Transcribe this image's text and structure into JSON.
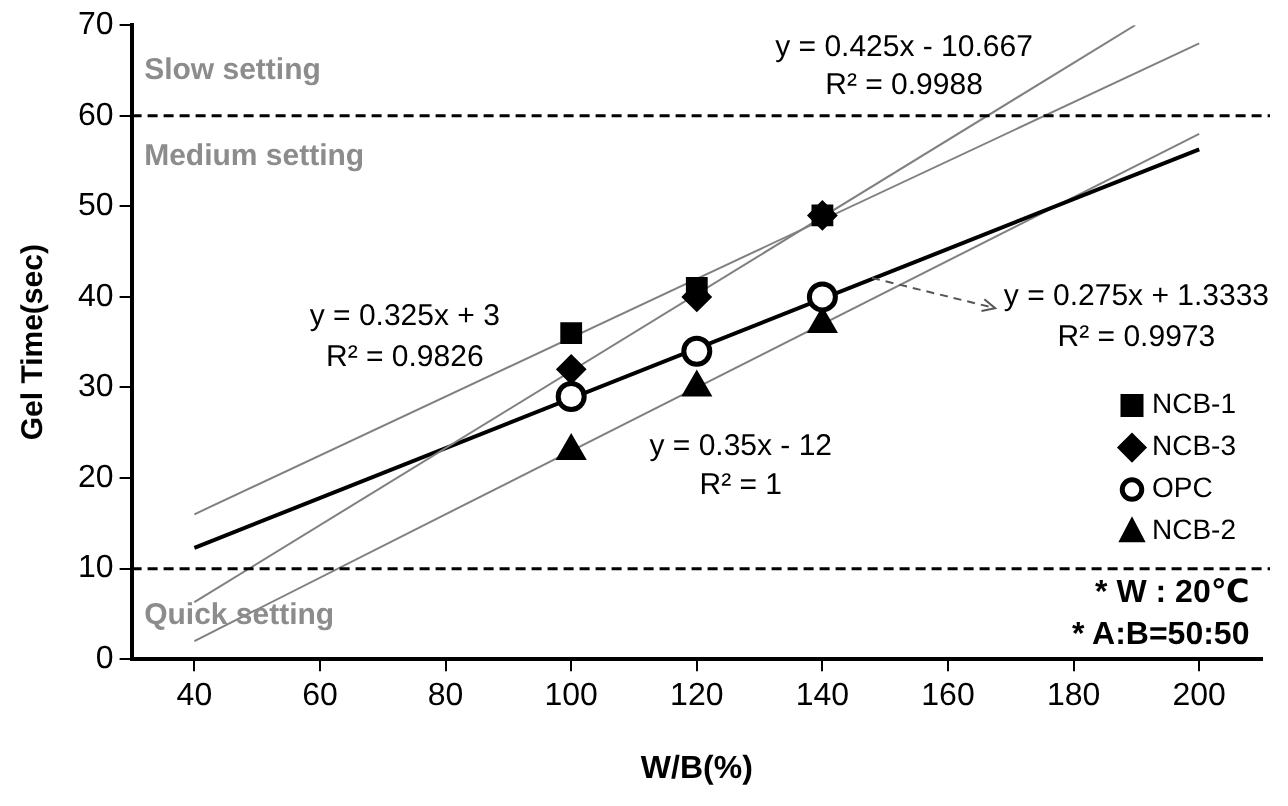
{
  "chart_data": {
    "type": "scatter",
    "xlabel": "W/B(%)",
    "ylabel": "Gel Time(sec)",
    "xlim": [
      30,
      210
    ],
    "xticks": [
      40,
      60,
      80,
      100,
      120,
      140,
      160,
      180,
      200
    ],
    "ylim": [
      0,
      70
    ],
    "yticks": [
      0,
      10,
      20,
      30,
      40,
      50,
      60,
      70
    ],
    "grid": false,
    "legend": "right",
    "series": [
      {
        "name": "NCB-1",
        "color": "#000000",
        "marker": "square",
        "x": [
          100,
          120,
          140
        ],
        "values": [
          36,
          41,
          49
        ]
      },
      {
        "name": "NCB-3",
        "color": "#000000",
        "marker": "diamond",
        "x": [
          100,
          120,
          140
        ],
        "values": [
          32,
          40,
          49
        ]
      },
      {
        "name": "OPC",
        "color": "#000000",
        "marker": "circle",
        "x": [
          100,
          120,
          140
        ],
        "values": [
          29,
          34,
          40
        ]
      },
      {
        "name": "NCB-2",
        "color": "#000000",
        "marker": "triangle",
        "x": [
          100,
          120,
          140
        ],
        "values": [
          23,
          30,
          37
        ]
      },
      {
        "type": "line",
        "color": "#808080",
        "marker": "none",
        "x": [
          40,
          200
        ],
        "values": [
          16,
          68
        ]
      },
      {
        "type": "line",
        "color": "#808080",
        "marker": "none",
        "x": [
          40,
          189.8
        ],
        "values": [
          6.3,
          70
        ]
      },
      {
        "type": "line",
        "color": "#000000",
        "marker": "none",
        "x": [
          40,
          200
        ],
        "values": [
          12.3,
          56.3
        ]
      },
      {
        "type": "line",
        "color": "#808080",
        "marker": "none",
        "x": [
          40,
          200
        ],
        "values": [
          2,
          58
        ]
      }
    ],
    "ref_lines": [
      {
        "axis": "y",
        "value": 60,
        "line_style": "dashed",
        "color": "#000000"
      },
      {
        "axis": "y",
        "value": 10,
        "line_style": "dashed",
        "color": "#000000"
      }
    ],
    "annotations": [
      "Slow setting",
      "Medium setting",
      "Quick setting",
      "y = 0.425x - 10.667",
      "R² = 0.9988",
      "y = 0.325x + 3",
      "R² = 0.9826",
      {
        "text": "y = 0.275x + 1.3333",
        "x": 148,
        "y": 42
      },
      "R² = 0.9973",
      "y = 0.35x - 12",
      "R² = 1",
      "* W : 20℃",
      "* A:B=50:50"
    ]
  }
}
